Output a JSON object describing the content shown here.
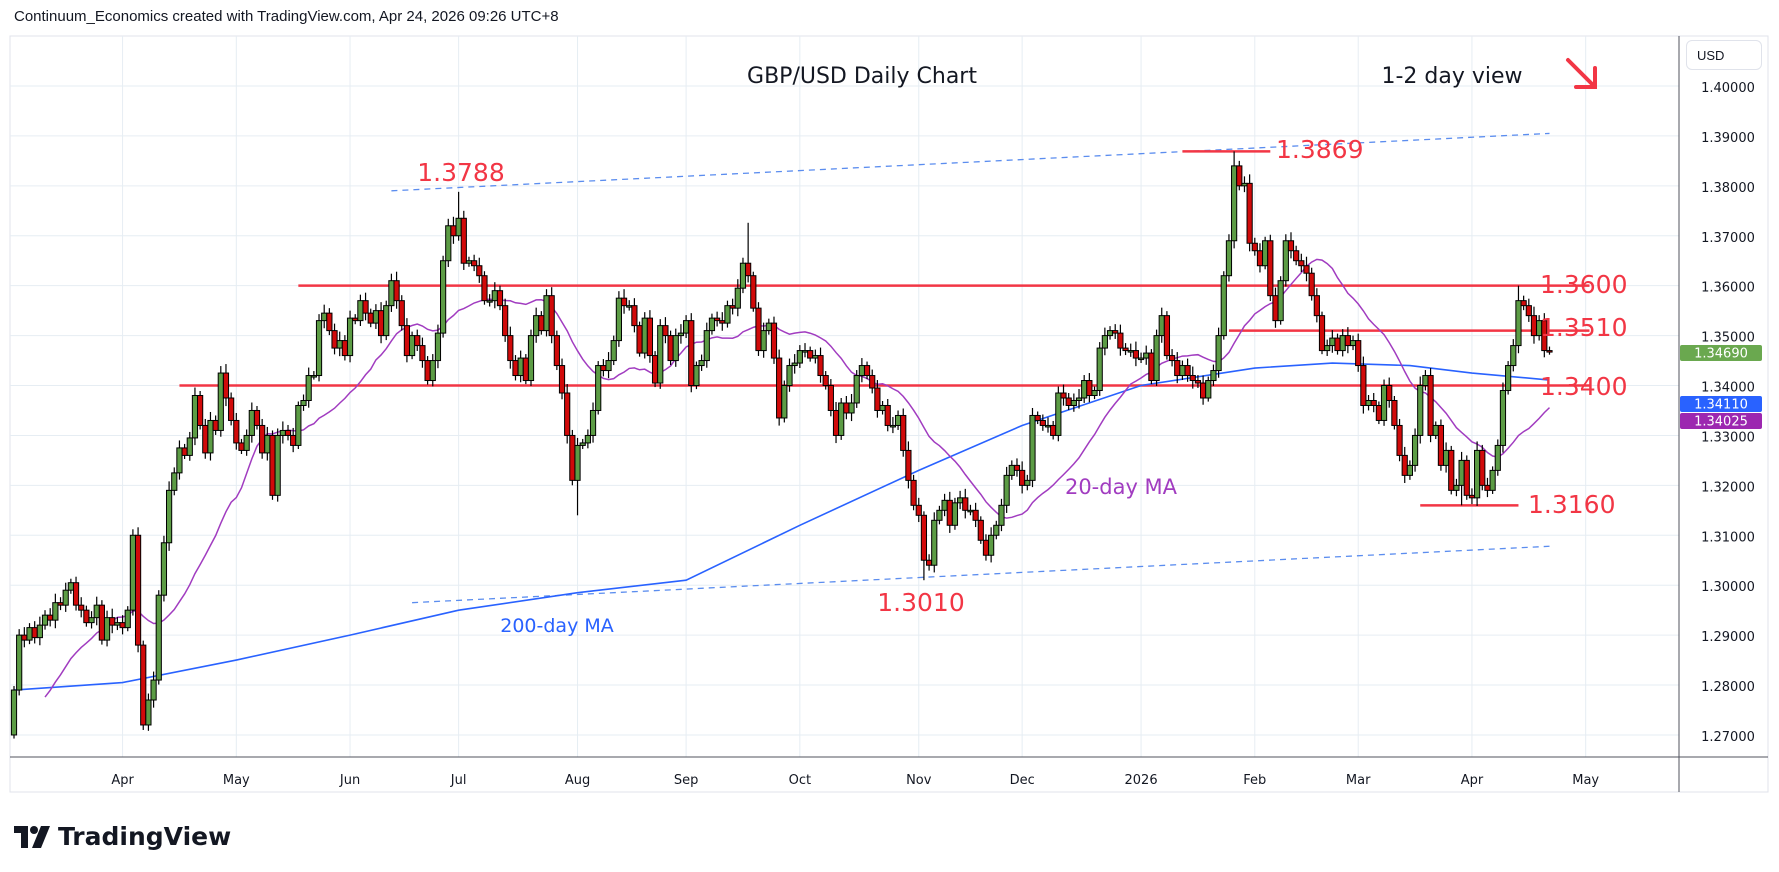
{
  "header": {
    "attribution": "Continuum_Economics created with TradingView.com, Apr 24, 2026 09:26 UTC+8"
  },
  "axis": {
    "currency": "USD"
  },
  "branding": {
    "logo_text": "TradingView"
  },
  "colors": {
    "up": "#5c9c45",
    "down": "#d10a0a",
    "ma20": "#a13cc0",
    "ma200": "#2962ff",
    "levels": "#f23645",
    "trend": "#5b8def",
    "last_tag": "#6aa84f"
  },
  "chart_data": {
    "type": "candlestick",
    "title": "GBP/USD Daily Chart",
    "subtitle": "1-2 day view",
    "bias_arrow": "down",
    "ylim": [
      1.265,
      1.405
    ],
    "y_ticks": [
      "1.27000",
      "1.28000",
      "1.29000",
      "1.30000",
      "1.31000",
      "1.32000",
      "1.33000",
      "1.34000",
      "1.35000",
      "1.36000",
      "1.37000",
      "1.38000",
      "1.39000",
      "1.40000"
    ],
    "x_ticks": [
      {
        "label": "Apr",
        "index": 21
      },
      {
        "label": "May",
        "index": 43
      },
      {
        "label": "Jun",
        "index": 65
      },
      {
        "label": "Jul",
        "index": 86
      },
      {
        "label": "Aug",
        "index": 109
      },
      {
        "label": "Sep",
        "index": 130
      },
      {
        "label": "Oct",
        "index": 152
      },
      {
        "label": "Nov",
        "index": 175
      },
      {
        "label": "Dec",
        "index": 195
      },
      {
        "label": "2026",
        "index": 218
      },
      {
        "label": "Feb",
        "index": 240
      },
      {
        "label": "Mar",
        "index": 260
      },
      {
        "label": "Apr",
        "index": 282
      },
      {
        "label": "May",
        "index": 304
      }
    ],
    "first_open": 1.27,
    "closes": [
      1.279,
      1.29,
      1.289,
      1.2915,
      1.2895,
      1.292,
      1.294,
      1.293,
      1.2965,
      1.296,
      1.299,
      1.3005,
      1.296,
      1.295,
      1.2925,
      1.2935,
      1.296,
      1.289,
      1.2935,
      1.292,
      1.2925,
      1.2915,
      1.295,
      1.31,
      1.288,
      1.272,
      1.277,
      1.281,
      1.298,
      1.3085,
      1.319,
      1.3225,
      1.3275,
      1.326,
      1.3295,
      1.338,
      1.332,
      1.3265,
      1.333,
      1.331,
      1.3425,
      1.3375,
      1.333,
      1.3285,
      1.327,
      1.33,
      1.335,
      1.332,
      1.3265,
      1.33,
      1.318,
      1.33,
      1.331,
      1.33,
      1.328,
      1.336,
      1.337,
      1.342,
      1.342,
      1.353,
      1.3545,
      1.351,
      1.3475,
      1.349,
      1.346,
      1.3535,
      1.353,
      1.357,
      1.3545,
      1.3525,
      1.355,
      1.35,
      1.356,
      1.361,
      1.357,
      1.352,
      1.346,
      1.35,
      1.348,
      1.345,
      1.341,
      1.345,
      1.3505,
      1.365,
      1.372,
      1.37,
      1.3735,
      1.3645,
      1.365,
      1.364,
      1.362,
      1.357,
      1.357,
      1.359,
      1.356,
      1.35,
      1.345,
      1.342,
      1.3455,
      1.341,
      1.35,
      1.354,
      1.351,
      1.358,
      1.35,
      1.344,
      1.3385,
      1.33,
      1.321,
      1.328,
      1.3285,
      1.33,
      1.335,
      1.344,
      1.343,
      1.345,
      1.349,
      1.3575,
      1.356,
      1.356,
      1.352,
      1.3465,
      1.3535,
      1.346,
      1.3405,
      1.352,
      1.35,
      1.345,
      1.35,
      1.3505,
      1.353,
      1.34,
      1.344,
      1.345,
      1.351,
      1.3535,
      1.353,
      1.3525,
      1.356,
      1.3555,
      1.3595,
      1.3645,
      1.362,
      1.3555,
      1.347,
      1.351,
      1.3525,
      1.3455,
      1.3335,
      1.34,
      1.344,
      1.3445,
      1.347,
      1.347,
      1.3455,
      1.346,
      1.342,
      1.34,
      1.335,
      1.33,
      1.3365,
      1.3345,
      1.3365,
      1.342,
      1.344,
      1.342,
      1.3395,
      1.335,
      1.336,
      1.332,
      1.332,
      1.334,
      1.327,
      1.321,
      1.316,
      1.314,
      1.305,
      1.304,
      1.313,
      1.315,
      1.317,
      1.312,
      1.3165,
      1.3175,
      1.315,
      1.315,
      1.313,
      1.309,
      1.306,
      1.31,
      1.312,
      1.316,
      1.322,
      1.324,
      1.323,
      1.32,
      1.321,
      1.334,
      1.333,
      1.332,
      1.332,
      1.33,
      1.3385,
      1.3375,
      1.336,
      1.337,
      1.3375,
      1.341,
      1.338,
      1.339,
      1.3475,
      1.35,
      1.351,
      1.3505,
      1.3475,
      1.347,
      1.347,
      1.3455,
      1.3455,
      1.3465,
      1.341,
      1.35,
      1.354,
      1.346,
      1.345,
      1.342,
      1.344,
      1.342,
      1.341,
      1.3405,
      1.3375,
      1.341,
      1.343,
      1.35,
      1.362,
      1.369,
      1.384,
      1.38,
      1.3805,
      1.3685,
      1.367,
      1.364,
      1.369,
      1.358,
      1.353,
      1.361,
      1.369,
      1.367,
      1.365,
      1.364,
      1.3625,
      1.358,
      1.354,
      1.347,
      1.348,
      1.3495,
      1.347,
      1.35,
      1.348,
      1.349,
      1.344,
      1.336,
      1.337,
      1.336,
      1.333,
      1.34,
      1.337,
      1.332,
      1.326,
      1.322,
      1.324,
      1.33,
      1.34,
      1.342,
      1.33,
      1.332,
      1.324,
      1.327,
      1.319,
      1.32,
      1.325,
      1.318,
      1.3175,
      1.327,
      1.32,
      1.319,
      1.323,
      1.328,
      1.339,
      1.344,
      1.348,
      1.357,
      1.356,
      1.354,
      1.35,
      1.353,
      1.347,
      1.3469
    ],
    "extremes": [
      {
        "index": 25,
        "low": 1.271
      },
      {
        "index": 86,
        "high": 1.3788
      },
      {
        "index": 109,
        "low": 1.314
      },
      {
        "index": 142,
        "high": 1.3726
      },
      {
        "index": 176,
        "low": 1.301
      },
      {
        "index": 236,
        "high": 1.3869
      },
      {
        "index": 280,
        "low": 1.316
      },
      {
        "index": 291,
        "high": 1.36
      }
    ],
    "ma200": [
      [
        0,
        1.279
      ],
      [
        21,
        1.2805
      ],
      [
        43,
        1.285
      ],
      [
        65,
        1.29
      ],
      [
        86,
        1.295
      ],
      [
        109,
        1.2985
      ],
      [
        130,
        1.301
      ],
      [
        152,
        1.312
      ],
      [
        175,
        1.323
      ],
      [
        195,
        1.332
      ],
      [
        218,
        1.34
      ],
      [
        240,
        1.3435
      ],
      [
        255,
        1.3445
      ],
      [
        270,
        1.344
      ],
      [
        282,
        1.3425
      ],
      [
        297,
        1.3411
      ]
    ],
    "levels": [
      {
        "value": 1.36,
        "from": 55,
        "to": 297,
        "label": "1.3600"
      },
      {
        "value": 1.351,
        "from": 235,
        "to": 297,
        "label": "1.3510"
      },
      {
        "value": 1.34,
        "from": 32,
        "to": 297,
        "label": "1.3400"
      },
      {
        "value": 1.3869,
        "from": 226,
        "to": 243,
        "label": "1.3869"
      },
      {
        "value": 1.316,
        "from": 272,
        "to": 291,
        "label": "1.3160"
      }
    ],
    "trendlines": [
      {
        "name": "upper-channel",
        "from": [
          73,
          1.379
        ],
        "to": [
          297,
          1.3905
        ]
      },
      {
        "name": "lower-channel",
        "from": [
          77,
          1.2965
        ],
        "to": [
          297,
          1.3078
        ]
      }
    ],
    "annotations": {
      "high_jul": "1.3788",
      "low_nov": "1.3010",
      "ma20_label": "20-day MA",
      "ma200_label": "200-day MA"
    },
    "price_tags": [
      {
        "name": "last-price",
        "value": "1.34690",
        "color": "#6aa84f"
      },
      {
        "name": "ma200-value",
        "value": "1.34110",
        "color": "#2962ff"
      },
      {
        "name": "ma20-value",
        "value": "1.34025",
        "color": "#9c27b0"
      }
    ]
  }
}
